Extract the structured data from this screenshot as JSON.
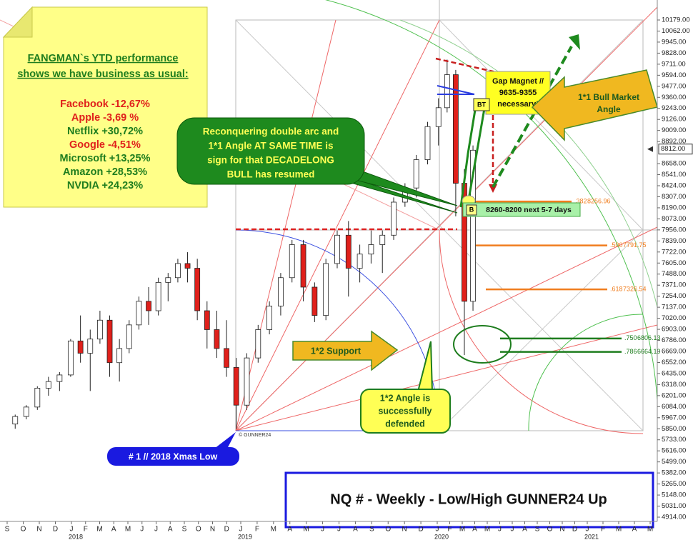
{
  "chart_data": {
    "type": "candlestick",
    "title": "NQ # - Weekly - Low/High GUNNER24 Up",
    "watermark": "© GUNNER24",
    "months": [
      "S",
      "O",
      "N",
      "D",
      "J",
      "F",
      "M",
      "A",
      "M",
      "J",
      "J",
      "A",
      "S",
      "O",
      "N",
      "D",
      "J",
      "F",
      "M",
      "A",
      "M",
      "J",
      "J",
      "A",
      "S",
      "O",
      "N",
      "D",
      "J",
      "F",
      "M",
      "A",
      "M",
      "J",
      "J",
      "A",
      "S",
      "O",
      "N",
      "D",
      "J",
      "F",
      "M",
      "A",
      "M"
    ],
    "years": [
      "2018",
      "2019",
      "2020",
      "2021"
    ],
    "ylim": [
      4914,
      10179
    ],
    "yticks": [
      {
        "value": 10179,
        "label": "10179.00"
      },
      {
        "value": 10062,
        "label": "10062.00"
      },
      {
        "value": 9945,
        "label": "9945.00"
      },
      {
        "value": 9828,
        "label": "9828.00"
      },
      {
        "value": 9711,
        "label": "9711.00"
      },
      {
        "value": 9594,
        "label": "9594.00"
      },
      {
        "value": 9477,
        "label": "9477.00"
      },
      {
        "value": 9360,
        "label": "9360.00"
      },
      {
        "value": 9243,
        "label": "9243.00"
      },
      {
        "value": 9126,
        "label": "9126.00"
      },
      {
        "value": 9009,
        "label": "9009.00"
      },
      {
        "value": 8892,
        "label": "8892.00"
      },
      {
        "value": 8658,
        "label": "8658.00"
      },
      {
        "value": 8541,
        "label": "8541.00"
      },
      {
        "value": 8424,
        "label": "8424.00"
      },
      {
        "value": 8307,
        "label": "8307.00"
      },
      {
        "value": 8190,
        "label": "8190.00"
      },
      {
        "value": 8073,
        "label": "8073.00"
      },
      {
        "value": 7956,
        "label": "7956.00"
      },
      {
        "value": 7839,
        "label": "7839.00"
      },
      {
        "value": 7722,
        "label": "7722.00"
      },
      {
        "value": 7605,
        "label": "7605.00"
      },
      {
        "value": 7488,
        "label": "7488.00"
      },
      {
        "value": 7371,
        "label": "7371.00"
      },
      {
        "value": 7254,
        "label": "7254.00"
      },
      {
        "value": 7137,
        "label": "7137.00"
      },
      {
        "value": 7020,
        "label": "7020.00"
      },
      {
        "value": 6903,
        "label": "6903.00"
      },
      {
        "value": 6786,
        "label": "6786.00"
      },
      {
        "value": 6669,
        "label": "6669.00"
      },
      {
        "value": 6552,
        "label": "6552.00"
      },
      {
        "value": 6435,
        "label": "6435.00"
      },
      {
        "value": 6318,
        "label": "6318.00"
      },
      {
        "value": 6201,
        "label": "6201.00"
      },
      {
        "value": 6084,
        "label": "6084.00"
      },
      {
        "value": 5967,
        "label": "5967.00"
      },
      {
        "value": 5850,
        "label": "5850.00"
      },
      {
        "value": 5733,
        "label": "5733.00"
      },
      {
        "value": 5616,
        "label": "5616.00"
      },
      {
        "value": 5499,
        "label": "5499.00"
      },
      {
        "value": 5382,
        "label": "5382.00"
      },
      {
        "value": 5265,
        "label": "5265.00"
      },
      {
        "value": 5148,
        "label": "5148.00"
      },
      {
        "value": 5031,
        "label": "5031.00"
      },
      {
        "value": 4914,
        "label": "4914.00"
      }
    ],
    "last_price": {
      "value": 8812,
      "label": "8812.00"
    },
    "up_color": "#ffffff",
    "down_color": "#e0201b",
    "open": [
      5900,
      5980,
      6080,
      6280,
      6350,
      6420,
      6780,
      6650,
      6800,
      7000,
      6550,
      6700,
      6950,
      7200,
      7100,
      7400,
      7450,
      7600,
      7550,
      7100,
      6900,
      6700,
      6500,
      6100,
      6600,
      6900,
      7150,
      7450,
      7800,
      7350,
      7050,
      7600,
      7900,
      7550,
      7700,
      7800,
      7900,
      8250,
      8400,
      8700,
      9050,
      9250,
      9600,
      8450,
      7200
    ],
    "high": [
      6000,
      6100,
      6300,
      6400,
      6450,
      6800,
      7050,
      6900,
      7100,
      7050,
      6800,
      7000,
      7250,
      7350,
      7450,
      7500,
      7650,
      7720,
      7650,
      7200,
      7100,
      7000,
      6600,
      6650,
      6950,
      7200,
      7500,
      7850,
      7850,
      7400,
      7650,
      7950,
      8050,
      7800,
      7950,
      7950,
      8300,
      8450,
      8750,
      9100,
      9350,
      9760,
      9650,
      8600,
      8850
    ],
    "low": [
      5850,
      5950,
      6050,
      6200,
      6250,
      6400,
      6550,
      6250,
      6750,
      6400,
      6350,
      6650,
      6900,
      6950,
      7050,
      7200,
      7400,
      7400,
      7000,
      6700,
      6600,
      6400,
      5850,
      6050,
      6550,
      6850,
      7050,
      7400,
      7200,
      6980,
      7000,
      7550,
      7250,
      7400,
      7600,
      7500,
      7850,
      8200,
      8300,
      8650,
      8850,
      9200,
      8100,
      6630,
      7100
    ],
    "close": [
      5980,
      6080,
      6280,
      6350,
      6420,
      6780,
      6650,
      6800,
      7000,
      6550,
      6700,
      6950,
      7200,
      7100,
      7400,
      7450,
      7600,
      7550,
      7100,
      6900,
      6700,
      6500,
      6100,
      6600,
      6900,
      7150,
      7450,
      7800,
      7350,
      7050,
      7600,
      7900,
      7550,
      7700,
      7800,
      7900,
      8250,
      8400,
      8700,
      9050,
      9250,
      9600,
      8450,
      7200,
      8800
    ],
    "fib_levels": [
      {
        "ratio": ".382",
        "value": 8256.96,
        "color": "#f07d1e"
      },
      {
        "ratio": ".500",
        "value": 7791.75,
        "color": "#f07d1e"
      },
      {
        "ratio": ".618",
        "value": 7326.54,
        "color": "#f07d1e"
      },
      {
        "ratio": ".750",
        "value": 6806.13,
        "color": "#1e7d1e"
      },
      {
        "ratio": ".786",
        "value": 6664.19,
        "color": "#1e7d1e"
      }
    ],
    "note": {
      "heading": [
        "FANGMAN`s YTD performance",
        "shows we have business as usual:"
      ],
      "items": [
        {
          "text": "Facebook -12,67%",
          "color": "#e0201b"
        },
        {
          "text": "Apple -3,69 %",
          "color": "#e0201b"
        },
        {
          "text": "Netflix +30,72%",
          "color": "#1e7d1e"
        },
        {
          "text": "Google -4,51%",
          "color": "#e0201b"
        },
        {
          "text": "Microsoft +13,25%",
          "color": "#1e7d1e"
        },
        {
          "text": "Amazon +28,53%",
          "color": "#1e7d1e"
        },
        {
          "text": "NVDIA +24,23%",
          "color": "#1e7d1e"
        }
      ]
    },
    "callout": [
      "Reconquering double arc and",
      "1*1 Angle AT SAME TIME is",
      "sign for that DECADELONG",
      "BULL has resumed"
    ],
    "gap_magnet": [
      "Gap Magnet //",
      "9635-9355",
      "necessary!"
    ],
    "bt": "BT",
    "b": "B",
    "target": "8260-8200 next 5-7 days",
    "bull_angle": [
      "1*1 Bull Market",
      "Angle"
    ],
    "support": "1*2 Support",
    "defended": [
      "1*2 Angle is",
      "successfully",
      "defended"
    ],
    "xmas_low": "# 1 // 2018 Xmas Low"
  }
}
